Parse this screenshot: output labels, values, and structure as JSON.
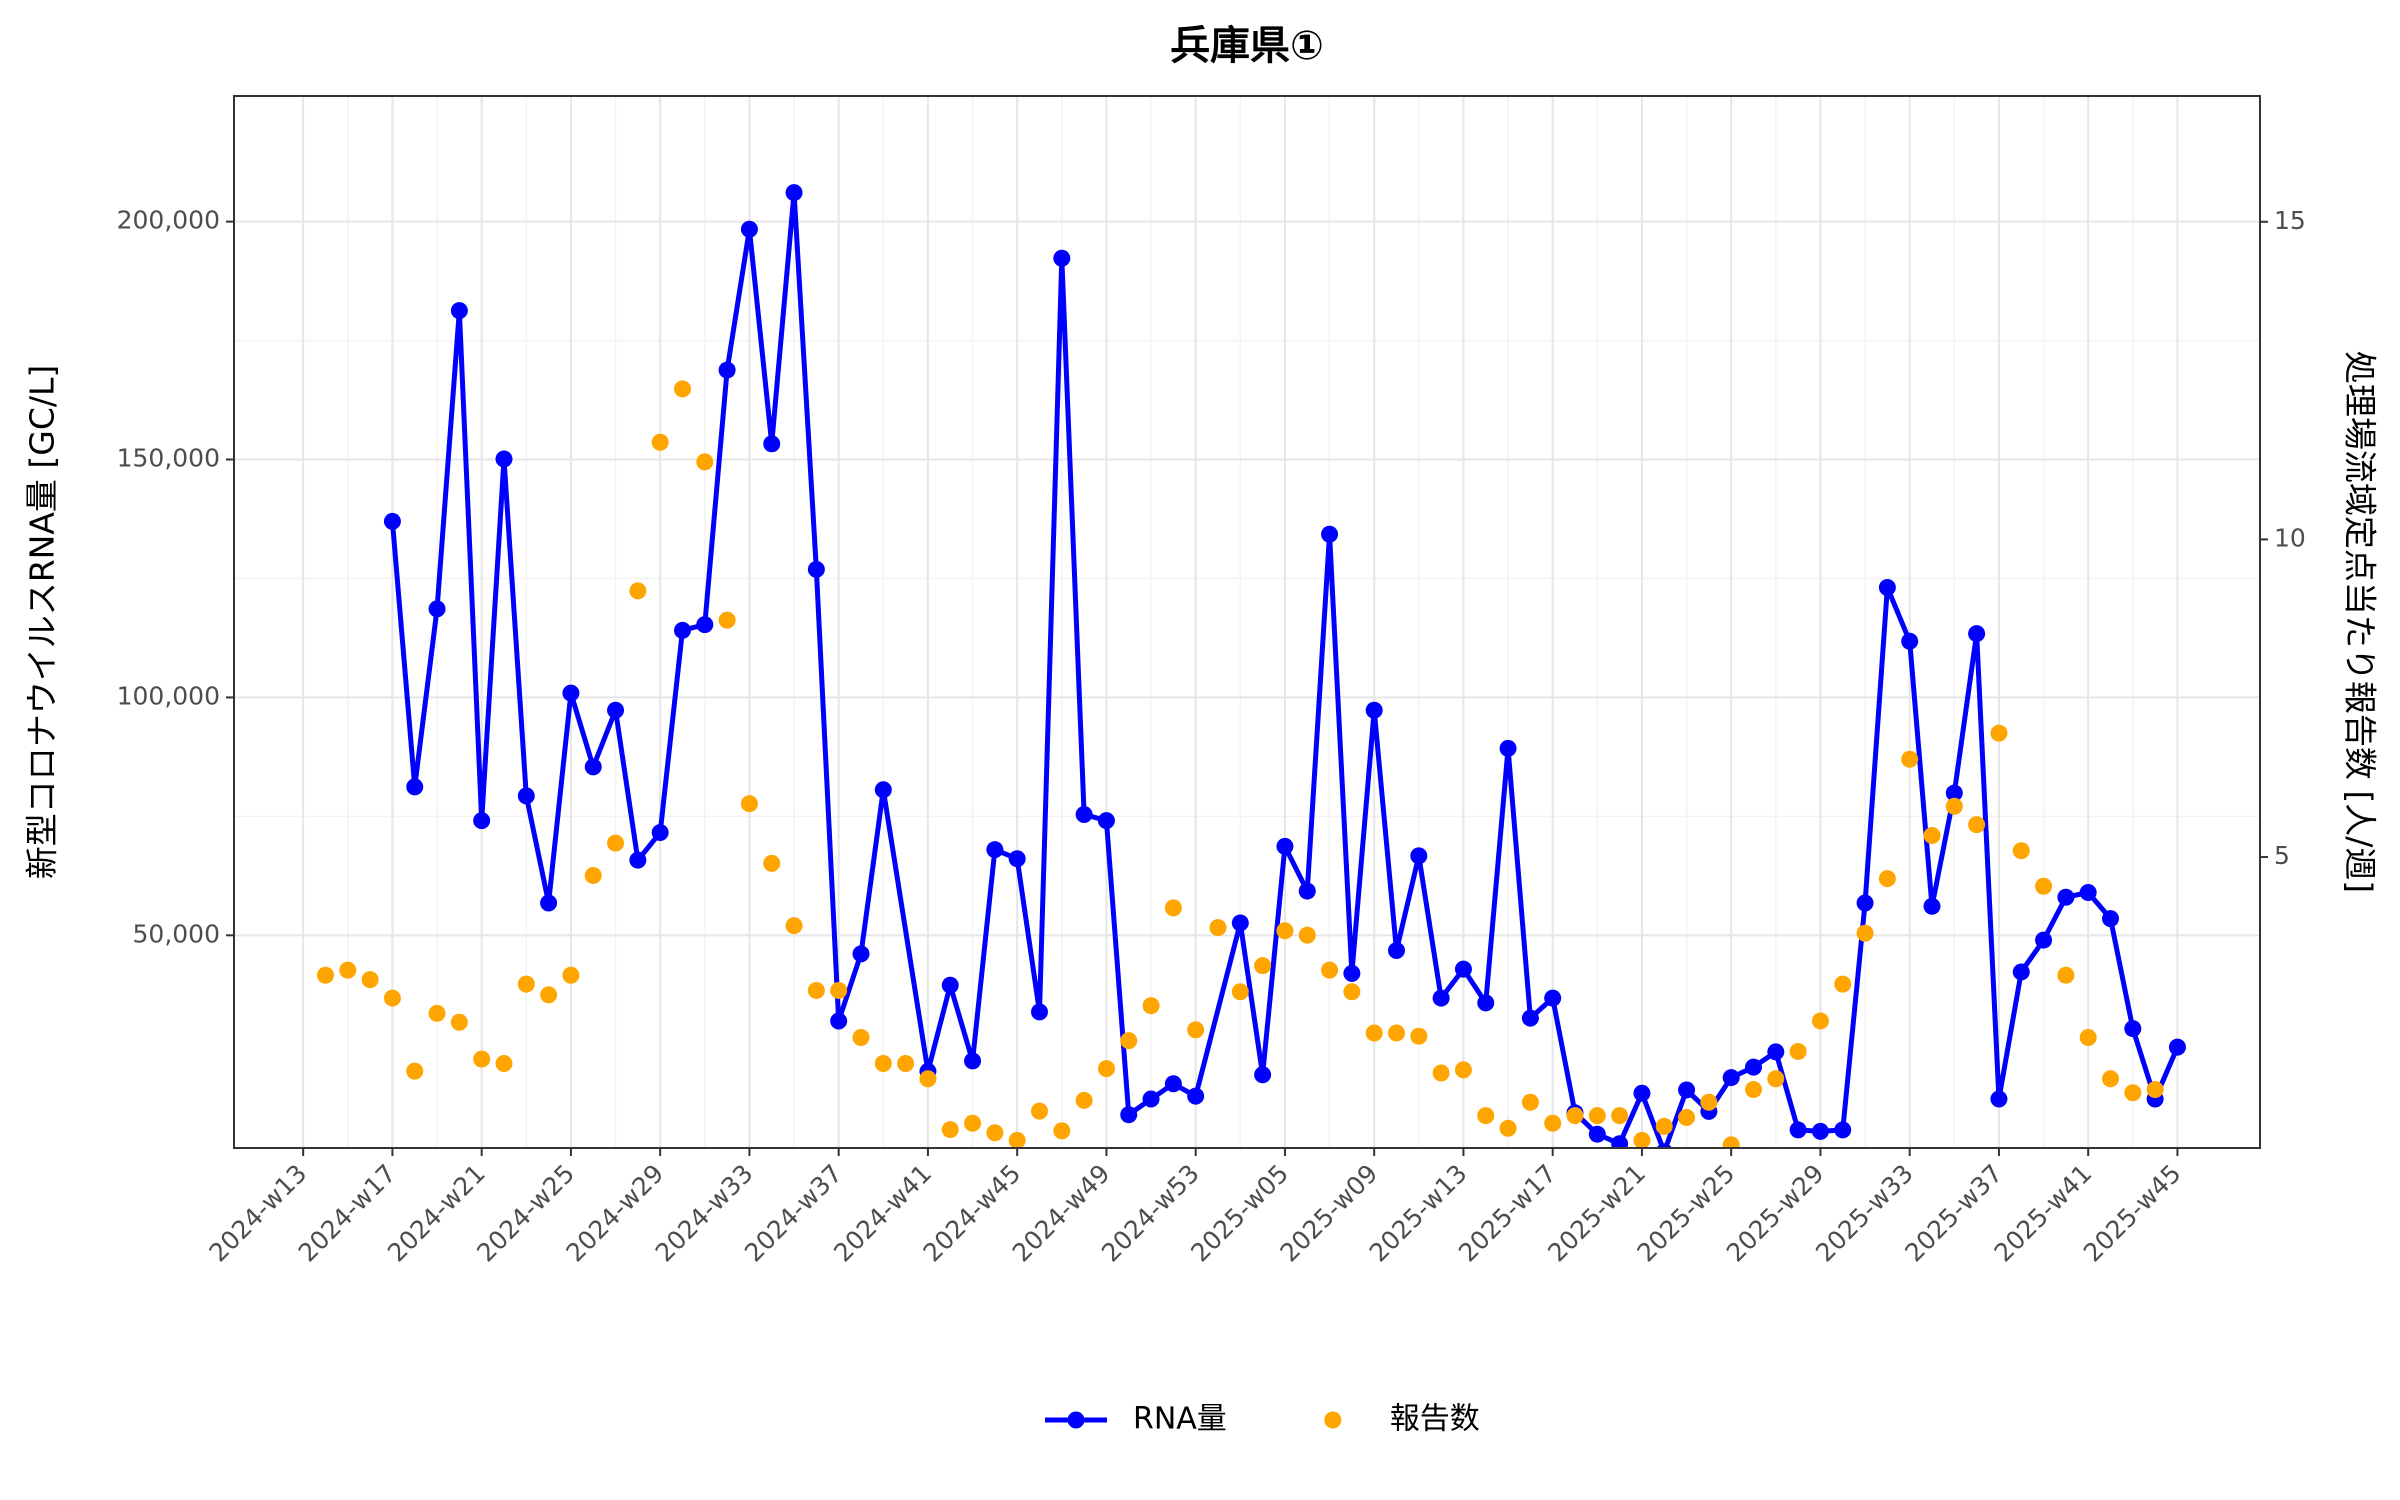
{
  "chart_data": {
    "type": "line",
    "title": "兵庫県①",
    "y_label": "新型コロナウイルスRNA量 [GC/L]",
    "y2_label": "処理場流域定点当たり報告数 [人/週]",
    "xlim": [
      9.9,
      100.7
    ],
    "xticks": [
      {
        "value": 13,
        "label": "2024-w13"
      },
      {
        "value": 17,
        "label": "2024-w17"
      },
      {
        "value": 21,
        "label": "2024-w21"
      },
      {
        "value": 25,
        "label": "2024-w25"
      },
      {
        "value": 29,
        "label": "2024-w29"
      },
      {
        "value": 33,
        "label": "2024-w33"
      },
      {
        "value": 37,
        "label": "2024-w37"
      },
      {
        "value": 41,
        "label": "2024-w41"
      },
      {
        "value": 45,
        "label": "2024-w45"
      },
      {
        "value": 49,
        "label": "2024-w49"
      },
      {
        "value": 53,
        "label": "2024-w53"
      },
      {
        "value": 57,
        "label": "2025-w05"
      },
      {
        "value": 61,
        "label": "2025-w09"
      },
      {
        "value": 65,
        "label": "2025-w13"
      },
      {
        "value": 69,
        "label": "2025-w17"
      },
      {
        "value": 73,
        "label": "2025-w21"
      },
      {
        "value": 77,
        "label": "2025-w25"
      },
      {
        "value": 81,
        "label": "2025-w29"
      },
      {
        "value": 85,
        "label": "2025-w33"
      },
      {
        "value": 89,
        "label": "2025-w37"
      },
      {
        "value": 93,
        "label": "2025-w41"
      },
      {
        "value": 97,
        "label": "2025-w45"
      }
    ],
    "ylim": [
      5300,
      226400
    ],
    "yticks": [
      {
        "value": 50000,
        "label": "50,000"
      },
      {
        "value": 100000,
        "label": "100,000"
      },
      {
        "value": 150000,
        "label": "150,000"
      },
      {
        "value": 200000,
        "label": "200,000"
      }
    ],
    "y2lim": [
      0.42,
      16.98
    ],
    "y2ticks": [
      5,
      10,
      15
    ],
    "grid": true,
    "legend": "bottom",
    "series": [
      {
        "name": "RNA量",
        "color": "#0000ff",
        "mode": "lines+markers",
        "x": [
          17,
          18,
          19,
          20,
          21,
          22,
          23,
          24,
          25,
          26,
          27,
          28,
          29,
          30,
          31,
          32,
          33,
          34,
          35,
          36,
          37,
          38,
          39,
          41,
          42,
          43,
          44,
          45,
          46,
          47,
          48,
          49,
          50,
          51,
          52,
          53,
          55,
          56,
          57,
          58,
          59,
          60,
          61,
          62,
          63,
          64,
          65,
          66,
          67,
          68,
          69,
          70,
          71,
          72,
          73,
          74,
          75,
          76,
          77,
          78,
          79,
          80,
          81,
          82,
          83,
          84,
          85,
          86,
          87,
          88,
          89,
          90,
          91,
          92,
          93,
          94,
          95,
          96,
          97
        ],
        "values": [
          137000,
          81200,
          118600,
          181300,
          74100,
          150100,
          79300,
          56800,
          100900,
          85400,
          97300,
          65800,
          71600,
          114100,
          115300,
          168800,
          198400,
          153300,
          206100,
          126900,
          32000,
          46100,
          80600,
          21400,
          39500,
          23600,
          68000,
          66100,
          33900,
          192300,
          75400,
          74100,
          12300,
          15600,
          18800,
          16200,
          52600,
          20700,
          68700,
          59300,
          134300,
          42000,
          97300,
          46800,
          66700,
          36800,
          42900,
          35800,
          89300,
          32600,
          36800,
          12700,
          8200,
          6200,
          16800,
          4500,
          17500,
          13000,
          20100,
          22300,
          25500,
          9100,
          8800,
          9100,
          56800,
          123100,
          111800,
          56100,
          79900,
          113400,
          15600,
          42300,
          49000,
          58000,
          59000,
          53500,
          30400,
          15600,
          26500
        ]
      },
      {
        "name": "報告数",
        "color": "#ffa500",
        "mode": "markers",
        "axis": "y2",
        "x": [
          14,
          15,
          16,
          17,
          18,
          19,
          20,
          21,
          22,
          23,
          24,
          25,
          26,
          27,
          28,
          29,
          30,
          31,
          32,
          33,
          34,
          35,
          36,
          37,
          38,
          39,
          40,
          41,
          42,
          43,
          44,
          45,
          46,
          47,
          48,
          49,
          50,
          51,
          52,
          53,
          54,
          55,
          56,
          57,
          58,
          59,
          60,
          61,
          62,
          63,
          64,
          65,
          66,
          67,
          68,
          69,
          70,
          71,
          72,
          73,
          74,
          75,
          76,
          77,
          78,
          79,
          80,
          81,
          82,
          83,
          84,
          85,
          86,
          87,
          88,
          89,
          90,
          91,
          92,
          93,
          94,
          95,
          96
        ],
        "values": [
          3.14,
          3.22,
          3.07,
          2.78,
          1.63,
          2.54,
          2.4,
          1.82,
          1.75,
          3.0,
          2.83,
          3.14,
          4.71,
          5.22,
          9.19,
          11.53,
          12.37,
          11.22,
          8.73,
          5.84,
          4.9,
          3.92,
          2.9,
          2.9,
          2.16,
          1.75,
          1.75,
          1.51,
          0.71,
          0.81,
          0.66,
          0.54,
          1.0,
          0.69,
          1.17,
          1.67,
          2.11,
          2.66,
          4.2,
          2.28,
          3.89,
          2.88,
          3.29,
          3.84,
          3.77,
          3.22,
          2.88,
          2.23,
          2.23,
          2.18,
          1.6,
          1.65,
          0.93,
          0.73,
          1.14,
          0.81,
          0.93,
          0.93,
          0.93,
          0.54,
          0.76,
          0.9,
          1.14,
          0.47,
          1.34,
          1.51,
          1.94,
          2.42,
          3.0,
          3.8,
          4.66,
          6.54,
          5.34,
          5.8,
          5.51,
          6.95,
          5.1,
          4.54,
          3.14,
          2.16,
          1.51,
          1.29,
          1.34
        ]
      }
    ]
  }
}
